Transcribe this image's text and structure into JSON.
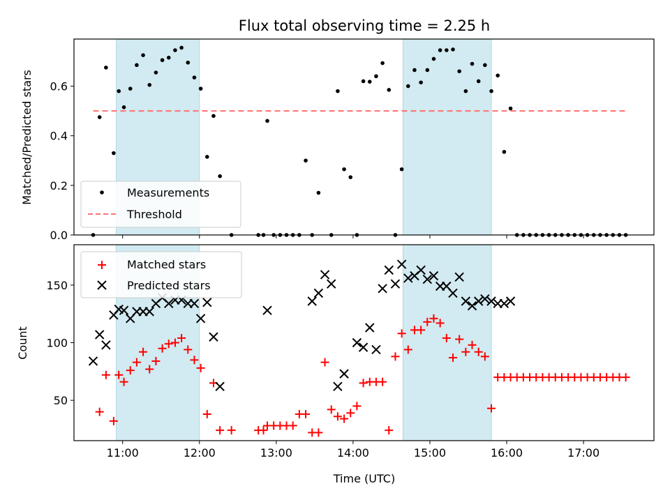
{
  "chart_data": {
    "title": "Flux total observing time = 2.25 h",
    "xlabel": "Time (UTC)",
    "x_ticks": [
      "11:00",
      "12:00",
      "13:00",
      "14:00",
      "15:00",
      "16:00",
      "17:00"
    ],
    "xlim": [
      "10:22",
      "17:55"
    ],
    "shaded_intervals": [
      [
        "10:55",
        "12:00"
      ],
      [
        "14:39",
        "15:48"
      ]
    ],
    "shade_color": "#add8e6",
    "panels": [
      {
        "type": "scatter",
        "ylabel": "Matched/Predicted stars",
        "ylim": [
          0,
          0.79
        ],
        "y_ticks": [
          "0.0",
          "0.2",
          "0.4",
          "0.6"
        ],
        "legend_position": "lower-left",
        "series": [
          {
            "name": "Measurements",
            "marker": "dot",
            "color": "#000000",
            "x": [
              "10:37",
              "10:42",
              "10:47",
              "10:53",
              "10:57",
              "11:01",
              "11:06",
              "11:11",
              "11:16",
              "11:21",
              "11:26",
              "11:31",
              "11:36",
              "11:41",
              "11:46",
              "11:51",
              "11:56",
              "12:01",
              "12:06",
              "12:11",
              "12:16",
              "12:25",
              "12:46",
              "12:50",
              "12:53",
              "12:58",
              "13:03",
              "13:08",
              "13:13",
              "13:18",
              "13:23",
              "13:28",
              "13:33",
              "13:43",
              "13:48",
              "13:53",
              "13:58",
              "14:03",
              "14:08",
              "14:13",
              "14:18",
              "14:23",
              "14:28",
              "14:33",
              "14:38",
              "14:43",
              "14:48",
              "14:53",
              "14:58",
              "15:03",
              "15:08",
              "15:13",
              "15:18",
              "15:23",
              "15:28",
              "15:33",
              "15:38",
              "15:43",
              "15:48",
              "15:53",
              "15:58",
              "16:03",
              "16:08",
              "16:13",
              "16:18",
              "16:23",
              "16:28",
              "16:33",
              "16:38",
              "16:43",
              "16:48",
              "16:53",
              "16:58",
              "17:03",
              "17:08",
              "17:13",
              "17:18",
              "17:23",
              "17:28",
              "17:33"
            ],
            "values": [
              0.0,
              0.475,
              0.675,
              0.33,
              0.58,
              0.515,
              0.59,
              0.685,
              0.725,
              0.605,
              0.655,
              0.705,
              0.715,
              0.745,
              0.755,
              0.695,
              0.635,
              0.59,
              0.315,
              0.48,
              0.237,
              0.0,
              0.0,
              0.0,
              0.46,
              0.0,
              0.0,
              0.0,
              0.0,
              0.0,
              0.3,
              0.0,
              0.17,
              0.0,
              0.58,
              0.265,
              0.233,
              0.0,
              0.62,
              0.618,
              0.64,
              0.693,
              0.585,
              0.0,
              0.265,
              0.6,
              0.665,
              0.615,
              0.665,
              0.71,
              0.745,
              0.745,
              0.748,
              0.66,
              0.58,
              0.69,
              0.62,
              0.685,
              0.58,
              0.643,
              0.335,
              0.51,
              0.0,
              0.0,
              0.0,
              0.0,
              0.0,
              0.0,
              0.0,
              0.0,
              0.0,
              0.0,
              0.0,
              0.0,
              0.0,
              0.0,
              0.0,
              0.0,
              0.0,
              0.0
            ]
          },
          {
            "name": "Threshold",
            "marker": "dashed-line",
            "color": "#ff7070",
            "x": [
              "10:37",
              "17:33"
            ],
            "values": [
              0.5,
              0.5
            ]
          }
        ]
      },
      {
        "type": "scatter",
        "ylabel": "Count",
        "ylim": [
          15,
          185
        ],
        "y_ticks": [
          "50",
          "100",
          "150"
        ],
        "legend_position": "upper-left",
        "series": [
          {
            "name": "Matched stars",
            "marker": "plus",
            "color": "#ff0000",
            "x": [
              "10:42",
              "10:47",
              "10:53",
              "10:57",
              "11:01",
              "11:06",
              "11:11",
              "11:16",
              "11:21",
              "11:26",
              "11:31",
              "11:36",
              "11:41",
              "11:46",
              "11:51",
              "11:56",
              "12:01",
              "12:06",
              "12:11",
              "12:16",
              "12:25",
              "12:46",
              "12:50",
              "12:53",
              "12:58",
              "13:03",
              "13:08",
              "13:13",
              "13:18",
              "13:23",
              "13:28",
              "13:33",
              "13:38",
              "13:43",
              "13:48",
              "13:53",
              "13:58",
              "14:03",
              "14:08",
              "14:13",
              "14:18",
              "14:23",
              "14:28",
              "14:33",
              "14:38",
              "14:43",
              "14:48",
              "14:53",
              "14:58",
              "15:03",
              "15:08",
              "15:13",
              "15:18",
              "15:23",
              "15:28",
              "15:33",
              "15:38",
              "15:43",
              "15:48",
              "15:53",
              "15:58",
              "16:03",
              "16:08",
              "16:13",
              "16:18",
              "16:23",
              "16:28",
              "16:33",
              "16:38",
              "16:43",
              "16:48",
              "16:53",
              "16:58",
              "17:03",
              "17:08",
              "17:13",
              "17:18",
              "17:23",
              "17:28",
              "17:33"
            ],
            "values": [
              40,
              72,
              32,
              72,
              66,
              76,
              83,
              92,
              77,
              84,
              95,
              99,
              100,
              104,
              94,
              85,
              78,
              38,
              65,
              24,
              24,
              24,
              24,
              28,
              28,
              28,
              28,
              28,
              38,
              38,
              22,
              22,
              83,
              42,
              36,
              34,
              39,
              45,
              65,
              66,
              66,
              66,
              24,
              88,
              108,
              94,
              111,
              111,
              118,
              121,
              117,
              104,
              87,
              103,
              92,
              98,
              92,
              88,
              43,
              70,
              70,
              70,
              70,
              70,
              70,
              70,
              70,
              70,
              70,
              70,
              70,
              70,
              70,
              70,
              70,
              70,
              70,
              70,
              70,
              70
            ]
          },
          {
            "name": "Predicted stars",
            "marker": "x",
            "color": "#000000",
            "x": [
              "10:37",
              "10:42",
              "10:47",
              "10:53",
              "10:57",
              "11:01",
              "11:06",
              "11:11",
              "11:16",
              "11:21",
              "11:26",
              "11:31",
              "11:36",
              "11:41",
              "11:46",
              "11:51",
              "11:56",
              "12:01",
              "12:06",
              "12:11",
              "12:16",
              "12:53",
              "13:28",
              "13:33",
              "13:38",
              "13:43",
              "13:48",
              "13:53",
              "14:03",
              "14:08",
              "14:13",
              "14:18",
              "14:23",
              "14:28",
              "14:33",
              "14:38",
              "14:43",
              "14:48",
              "14:53",
              "14:58",
              "15:03",
              "15:08",
              "15:13",
              "15:18",
              "15:23",
              "15:28",
              "15:33",
              "15:38",
              "15:43",
              "15:48",
              "15:53",
              "15:58",
              "16:03"
            ],
            "values": [
              84,
              107,
              98,
              124,
              129,
              128,
              121,
              127,
              127,
              127,
              134,
              139,
              134,
              137,
              137,
              134,
              134,
              121,
              135,
              105,
              62,
              128,
              136,
              143,
              159,
              151,
              62,
              73,
              100,
              96,
              113,
              94,
              147,
              163,
              151,
              168,
              156,
              158,
              163,
              155,
              158,
              149,
              149,
              143,
              157,
              136,
              132,
              136,
              138,
              136,
              134,
              134,
              136
            ]
          }
        ]
      }
    ]
  }
}
